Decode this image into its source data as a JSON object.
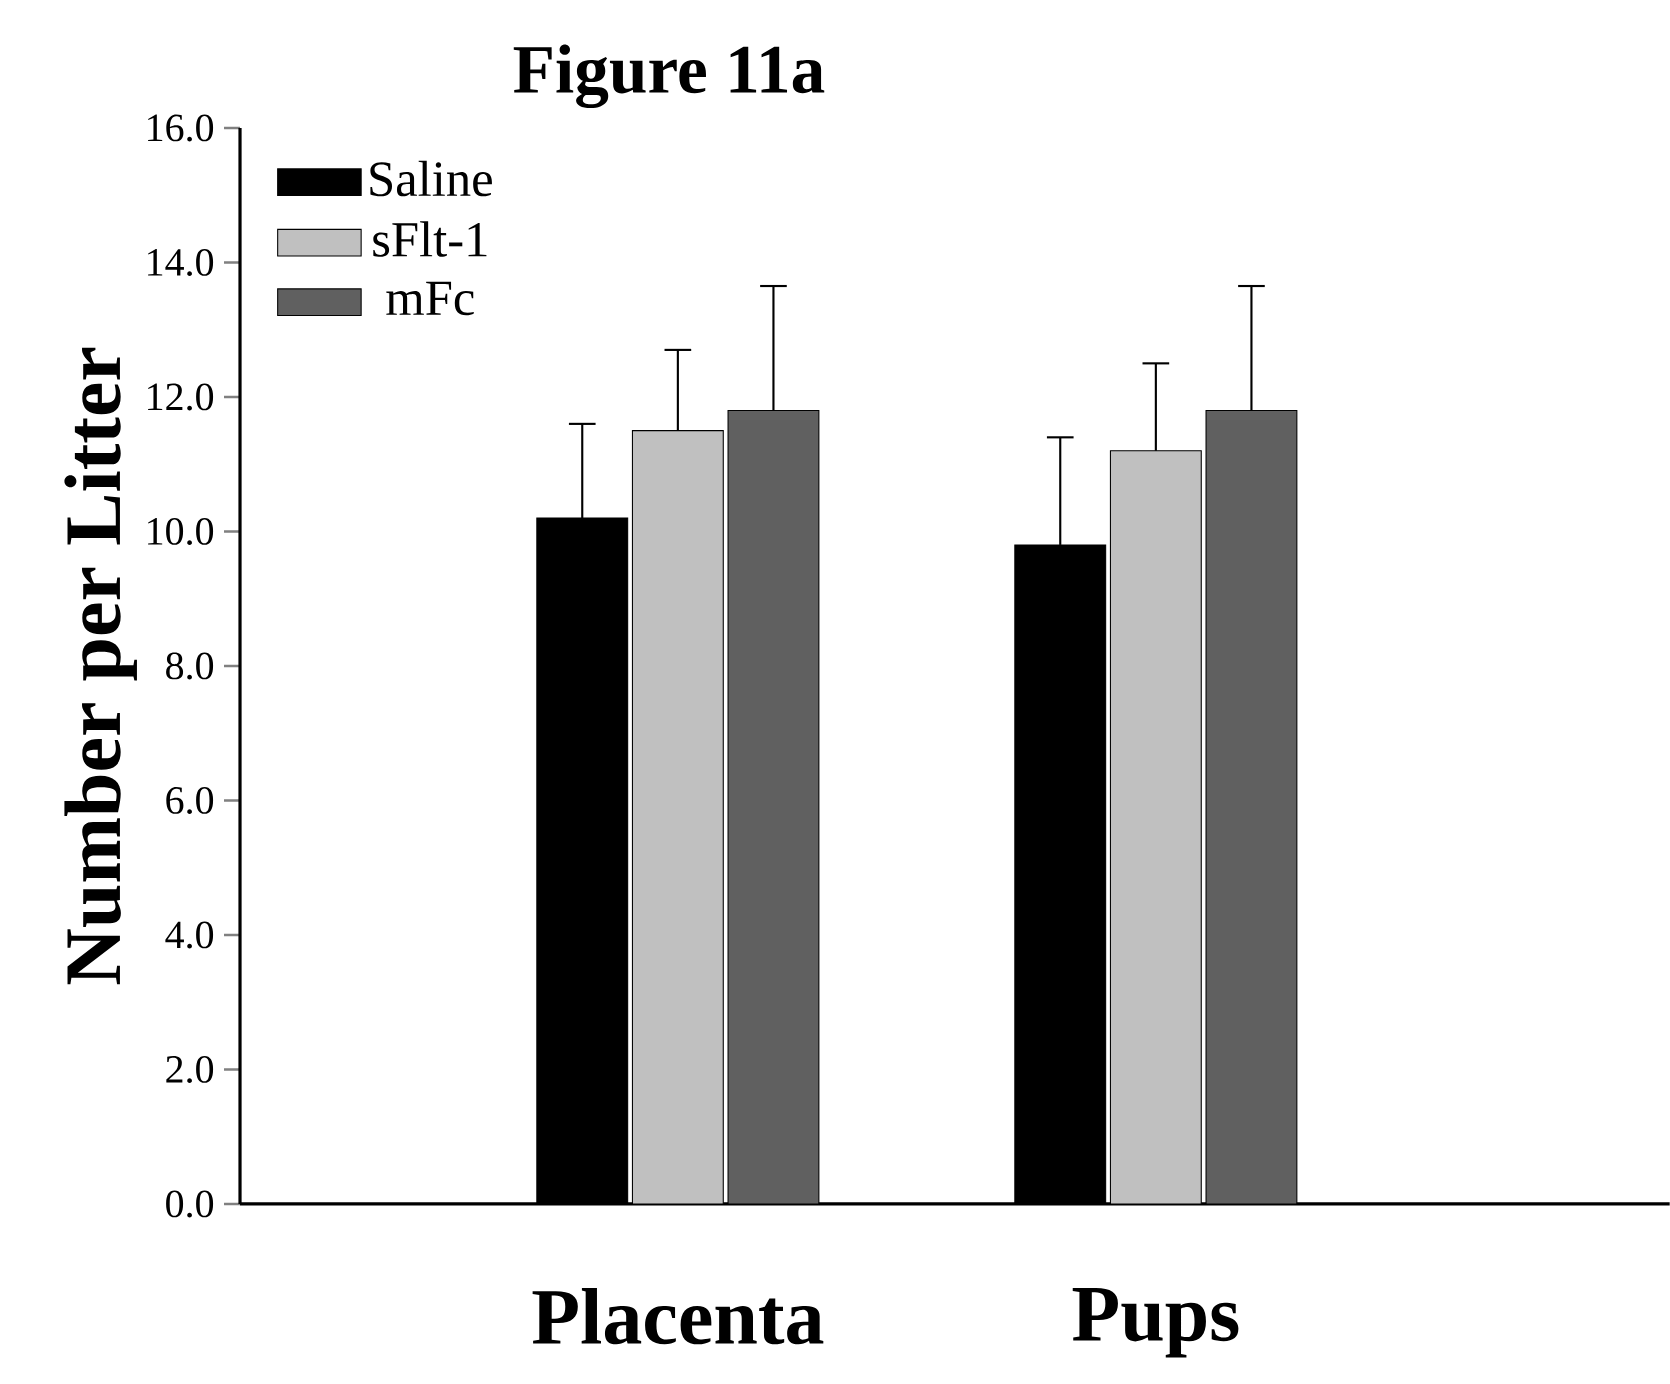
{
  "chart_data": {
    "type": "bar",
    "title": "Figure 11a",
    "ylabel": "Number per Litter",
    "categories": [
      "Placenta",
      "Pups"
    ],
    "series": [
      {
        "name": "Saline",
        "color": "#000000",
        "values": [
          10.2,
          9.8
        ],
        "errors": [
          [
            10.2,
            11.6
          ],
          [
            9.8,
            11.4
          ]
        ]
      },
      {
        "name": "sFlt-1",
        "color": "#c0c0c0",
        "values": [
          11.5,
          11.2
        ],
        "errors": [
          [
            11.5,
            12.7
          ],
          [
            11.2,
            12.5
          ]
        ]
      },
      {
        "name": "mFc",
        "color": "#606060",
        "values": [
          11.8,
          11.8
        ],
        "errors": [
          [
            11.8,
            13.65
          ],
          [
            11.8,
            13.65
          ]
        ]
      }
    ],
    "ylim": [
      0,
      16
    ],
    "yticks": [
      {
        "value": 0,
        "label": "0.0"
      },
      {
        "value": 2,
        "label": "2.0"
      },
      {
        "value": 4,
        "label": "4.0"
      },
      {
        "value": 6,
        "label": "6.0"
      },
      {
        "value": 8,
        "label": "8.0"
      },
      {
        "value": 10,
        "label": "10.0"
      },
      {
        "value": 12,
        "label": "12.0"
      },
      {
        "value": 14,
        "label": "14.0"
      },
      {
        "value": 16,
        "label": "16.0"
      }
    ],
    "grid": false,
    "legend": "top left"
  }
}
